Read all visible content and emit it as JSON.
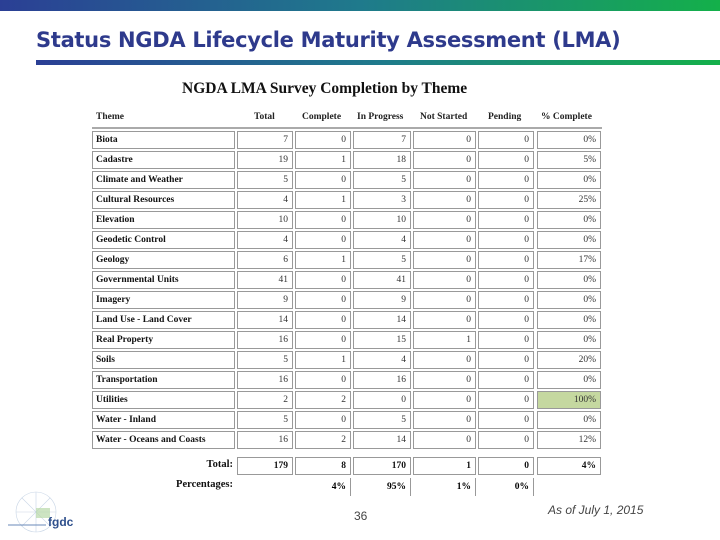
{
  "slide": {
    "title": "Status NGDA Lifecycle Maturity Assessment (LMA)",
    "page_number": "36",
    "as_of": "As of July 1, 2015",
    "logo_text": "fgdc"
  },
  "table": {
    "title": "NGDA LMA Survey Completion by Theme",
    "columns": [
      "Theme",
      "Total",
      "Complete",
      "In Progress",
      "Not Started",
      "Pending",
      "% Complete"
    ],
    "rows": [
      [
        "Biota",
        "7",
        "0",
        "7",
        "0",
        "0",
        "0%"
      ],
      [
        "Cadastre",
        "19",
        "1",
        "18",
        "0",
        "0",
        "5%"
      ],
      [
        "Climate and Weather",
        "5",
        "0",
        "5",
        "0",
        "0",
        "0%"
      ],
      [
        "Cultural Resources",
        "4",
        "1",
        "3",
        "0",
        "0",
        "25%"
      ],
      [
        "Elevation",
        "10",
        "0",
        "10",
        "0",
        "0",
        "0%"
      ],
      [
        "Geodetic Control",
        "4",
        "0",
        "4",
        "0",
        "0",
        "0%"
      ],
      [
        "Geology",
        "6",
        "1",
        "5",
        "0",
        "0",
        "17%"
      ],
      [
        "Governmental Units",
        "41",
        "0",
        "41",
        "0",
        "0",
        "0%"
      ],
      [
        "Imagery",
        "9",
        "0",
        "9",
        "0",
        "0",
        "0%"
      ],
      [
        "Land Use - Land Cover",
        "14",
        "0",
        "14",
        "0",
        "0",
        "0%"
      ],
      [
        "Real Property",
        "16",
        "0",
        "15",
        "1",
        "0",
        "0%"
      ],
      [
        "Soils",
        "5",
        "1",
        "4",
        "0",
        "0",
        "20%"
      ],
      [
        "Transportation",
        "16",
        "0",
        "16",
        "0",
        "0",
        "0%"
      ],
      [
        "Utilities",
        "2",
        "2",
        "0",
        "0",
        "0",
        "100%"
      ],
      [
        "Water - Inland",
        "5",
        "0",
        "5",
        "0",
        "0",
        "0%"
      ],
      [
        "Water - Oceans and Coasts",
        "16",
        "2",
        "14",
        "0",
        "0",
        "12%"
      ]
    ],
    "highlight_color": "#c5d8a0",
    "total_label": "Total:",
    "totals": [
      "179",
      "8",
      "170",
      "1",
      "0",
      "4%"
    ],
    "percentages_label": "Percentages:",
    "percentages": [
      "4%",
      "95%",
      "1%",
      "0%"
    ]
  }
}
